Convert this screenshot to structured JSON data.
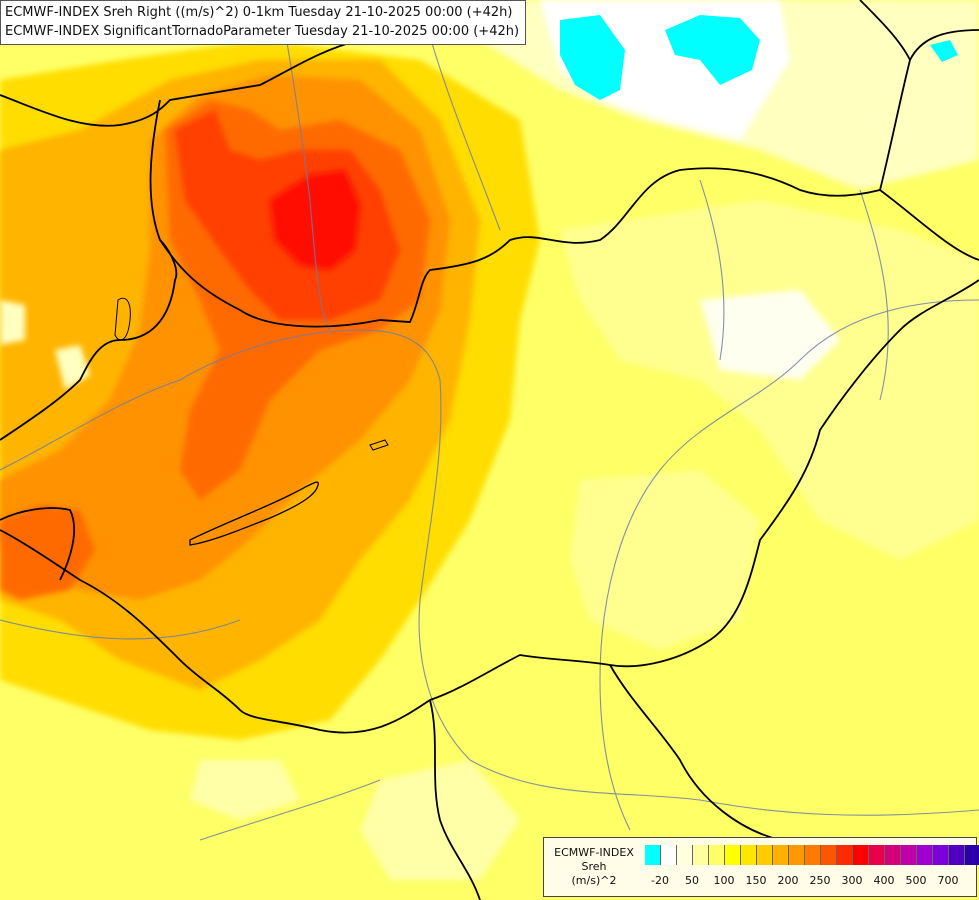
{
  "title": {
    "line1": "ECMWF-INDEX Sreh Right ((m/s)^2) 0-1km Tuesday 21-10-2025 00:00 (+42h)",
    "line2": "ECMWF-INDEX SignificantTornadoParameter Tuesday 21-10-2025 00:00 (+42h)"
  },
  "legend": {
    "line1": "ECMWF-INDEX",
    "line2": "Sreh",
    "line3": "(m/s)^2",
    "colors": [
      "#00ffff",
      "#ffffff",
      "#ffffe0",
      "#ffffa0",
      "#ffff66",
      "#ffff00",
      "#ffe600",
      "#ffcc00",
      "#ffb000",
      "#ff9800",
      "#ff7a00",
      "#ff5500",
      "#ff2a00",
      "#ff0000",
      "#e8004a",
      "#d4007a",
      "#c000a8",
      "#a000d0",
      "#7c00d8",
      "#5000c0",
      "#2c00a8"
    ],
    "ticks": [
      "-20",
      "50",
      "100",
      "150",
      "200",
      "250",
      "300",
      "400",
      "500",
      "700"
    ]
  },
  "field_colors": {
    "cyan": "#00ffff",
    "white": "#ffffff",
    "pale": "#ffffc0",
    "light_yellow": "#ffff80",
    "yellow": "#ffff00",
    "gold": "#ffdd00",
    "orange_light": "#ffb400",
    "orange": "#ff8c00",
    "orange_dark": "#ff6a00",
    "red_orange": "#ff4000",
    "red": "#ff1000"
  }
}
